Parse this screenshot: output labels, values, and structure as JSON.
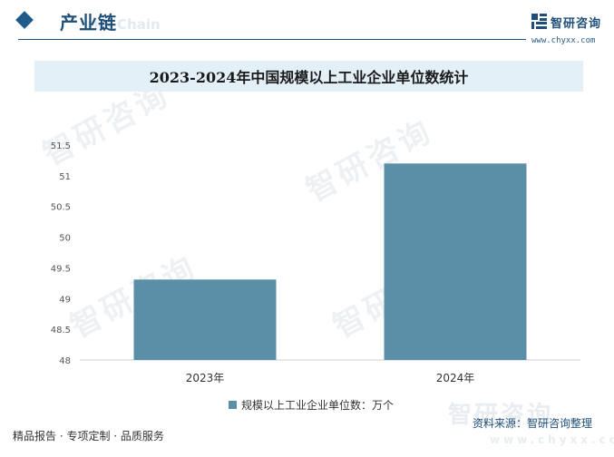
{
  "header": {
    "section_title": "产业链",
    "ghost_subtitle": "rial Chain",
    "logo_text": "智研咨询",
    "logo_url": "www.chyxx.com",
    "watermark_text": "智研咨询",
    "footer_brand_bg": "智研咨询",
    "footer_url_bg": "www.chyxx.com"
  },
  "chart_data": {
    "type": "bar",
    "title": "2023-2024年中国规模以上工业企业单位数统计",
    "categories": [
      "2023年",
      "2024年"
    ],
    "series": [
      {
        "name": "规模以上工业企业单位数：万个",
        "values": [
          49.31,
          51.2
        ],
        "color": "#5b8fa8"
      }
    ],
    "ylim": [
      48,
      51.5
    ],
    "yticks": [
      "48",
      "48.5",
      "49",
      "49.5",
      "50",
      "50.5",
      "51",
      "51.5"
    ],
    "legend_position": "bottom",
    "grid": false
  },
  "footer": {
    "left_text": "精品报告 · 专项定制 · 品质服务",
    "source_text": "资料来源：智研咨询整理"
  },
  "colors": {
    "brand": "#1f4f78",
    "bar": "#5b8fa8",
    "title_band": "#e3f0f8"
  }
}
